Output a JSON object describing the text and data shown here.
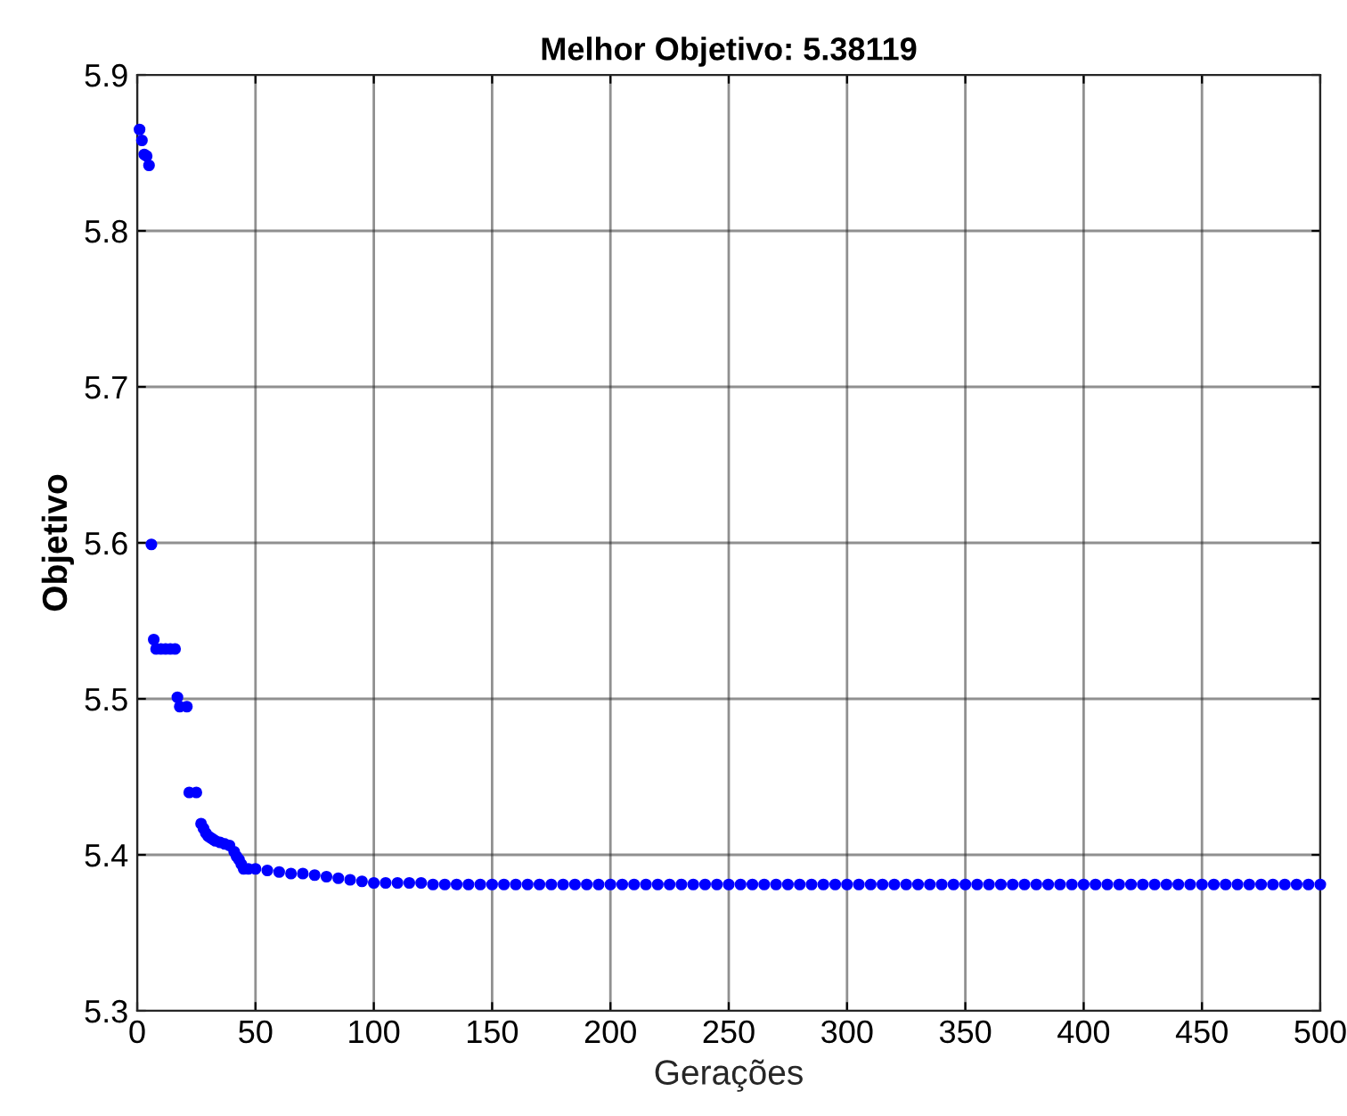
{
  "chart_data": {
    "type": "scatter",
    "title": "Melhor Objetivo: 5.38119",
    "xlabel": "Gerações",
    "ylabel": "Objetivo",
    "xlim": [
      0,
      500
    ],
    "ylim": [
      5.3,
      5.9
    ],
    "xticks": [
      0,
      50,
      100,
      150,
      200,
      250,
      300,
      350,
      400,
      450,
      500
    ],
    "yticks": [
      5.3,
      5.4,
      5.5,
      5.6,
      5.7,
      5.8,
      5.9
    ],
    "grid": true,
    "marker": "circle",
    "series": [
      {
        "color": "#0000ff",
        "x": [
          1,
          2,
          3,
          4,
          5,
          6,
          7,
          8,
          10,
          12,
          14,
          16,
          17,
          18,
          21,
          22,
          25,
          27,
          28,
          29,
          30,
          31,
          32,
          33,
          35,
          37,
          39,
          41,
          42,
          43,
          44,
          45,
          47,
          50,
          55,
          60,
          65,
          70,
          75,
          80,
          85,
          90,
          95,
          100,
          105,
          110,
          115,
          120,
          125,
          130,
          135,
          140,
          145,
          150,
          155,
          160,
          165,
          170,
          175,
          180,
          185,
          190,
          195,
          200,
          205,
          210,
          215,
          220,
          225,
          230,
          235,
          240,
          245,
          250,
          255,
          260,
          265,
          270,
          275,
          280,
          285,
          290,
          295,
          300,
          305,
          310,
          315,
          320,
          325,
          330,
          335,
          340,
          345,
          350,
          355,
          360,
          365,
          370,
          375,
          380,
          385,
          390,
          395,
          400,
          405,
          410,
          415,
          420,
          425,
          430,
          435,
          440,
          445,
          450,
          455,
          460,
          465,
          470,
          475,
          480,
          485,
          490,
          495,
          500
        ],
        "values": [
          5.865,
          5.858,
          5.849,
          5.848,
          5.842,
          5.599,
          5.538,
          5.532,
          5.532,
          5.532,
          5.532,
          5.532,
          5.501,
          5.495,
          5.495,
          5.44,
          5.44,
          5.42,
          5.417,
          5.414,
          5.412,
          5.411,
          5.41,
          5.409,
          5.408,
          5.407,
          5.406,
          5.402,
          5.399,
          5.397,
          5.394,
          5.391,
          5.391,
          5.391,
          5.39,
          5.389,
          5.388,
          5.388,
          5.387,
          5.386,
          5.385,
          5.384,
          5.383,
          5.382,
          5.382,
          5.382,
          5.382,
          5.382,
          5.381,
          5.381,
          5.381,
          5.381,
          5.381,
          5.381,
          5.381,
          5.381,
          5.381,
          5.381,
          5.381,
          5.381,
          5.381,
          5.381,
          5.381,
          5.381,
          5.381,
          5.381,
          5.381,
          5.381,
          5.381,
          5.381,
          5.381,
          5.381,
          5.381,
          5.381,
          5.381,
          5.381,
          5.381,
          5.381,
          5.381,
          5.381,
          5.381,
          5.381,
          5.381,
          5.381,
          5.381,
          5.381,
          5.381,
          5.381,
          5.381,
          5.381,
          5.381,
          5.381,
          5.381,
          5.381,
          5.381,
          5.381,
          5.381,
          5.381,
          5.381,
          5.381,
          5.381,
          5.381,
          5.381,
          5.381,
          5.381,
          5.381,
          5.381,
          5.381,
          5.381,
          5.381,
          5.381,
          5.381,
          5.381,
          5.381,
          5.381,
          5.381,
          5.381,
          5.381,
          5.381,
          5.381,
          5.381,
          5.381,
          5.381,
          5.381
        ]
      }
    ]
  }
}
